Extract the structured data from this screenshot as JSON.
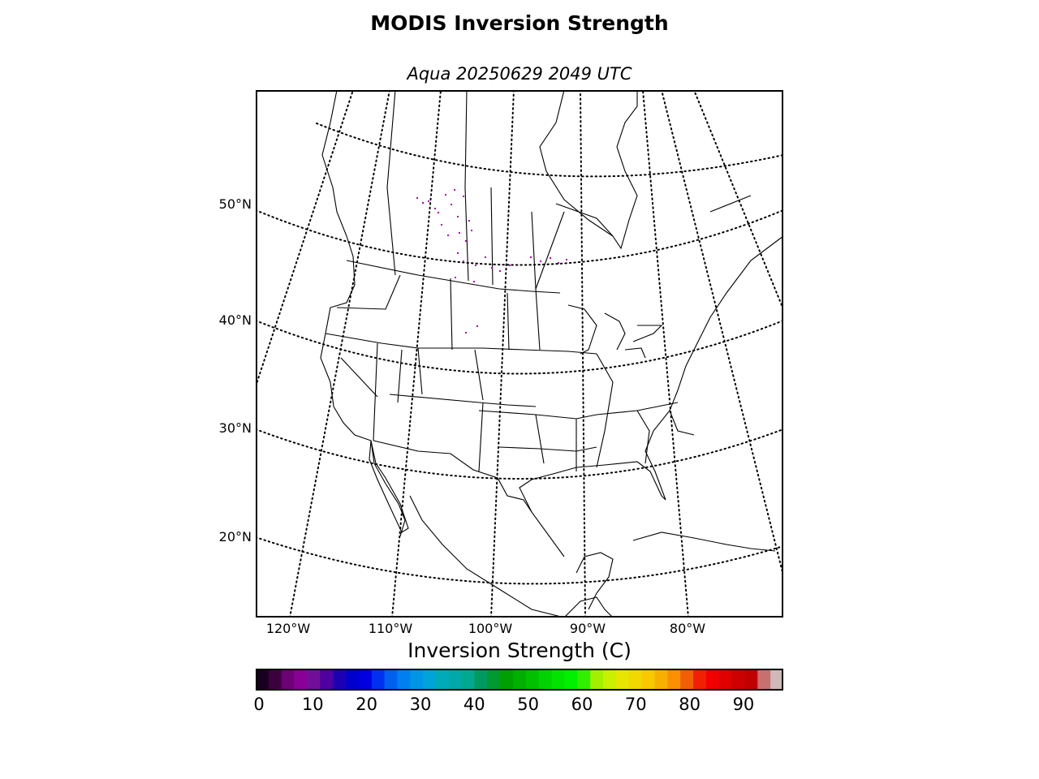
{
  "title": "MODIS Inversion Strength",
  "subtitle": "Aqua 20250629 2049 UTC",
  "map": {
    "projection": "lambert-conformal",
    "region": "North America",
    "latitude_labels": [
      "50°N",
      "40°N",
      "30°N",
      "20°N"
    ],
    "longitude_labels": [
      "120°W",
      "110°W",
      "100°W",
      "90°W",
      "80°W"
    ],
    "gridlines": "dotted",
    "data_color": "#b000b0"
  },
  "colorbar": {
    "label": "Inversion Strength (C)",
    "ticks": [
      "0",
      "10",
      "20",
      "30",
      "40",
      "50",
      "60",
      "70",
      "80",
      "90"
    ],
    "range": [
      0,
      98
    ],
    "colors": [
      "#1a0020",
      "#3c0040",
      "#6e0078",
      "#8a0096",
      "#70109a",
      "#5000a0",
      "#1e00b4",
      "#0000cc",
      "#0000e0",
      "#0030f0",
      "#0060f0",
      "#0080f0",
      "#0096e8",
      "#00a4d8",
      "#00aab8",
      "#00a8a8",
      "#00a890",
      "#009a60",
      "#009a30",
      "#00a000",
      "#00b000",
      "#00c000",
      "#00d400",
      "#00e400",
      "#00f000",
      "#30f000",
      "#a0f000",
      "#c8f000",
      "#e6e600",
      "#f0d800",
      "#f8c800",
      "#f8b000",
      "#f89000",
      "#f06000",
      "#f02000",
      "#f00000",
      "#e00000",
      "#cc0000",
      "#c00000",
      "#c87070",
      "#d0b8b8"
    ]
  }
}
